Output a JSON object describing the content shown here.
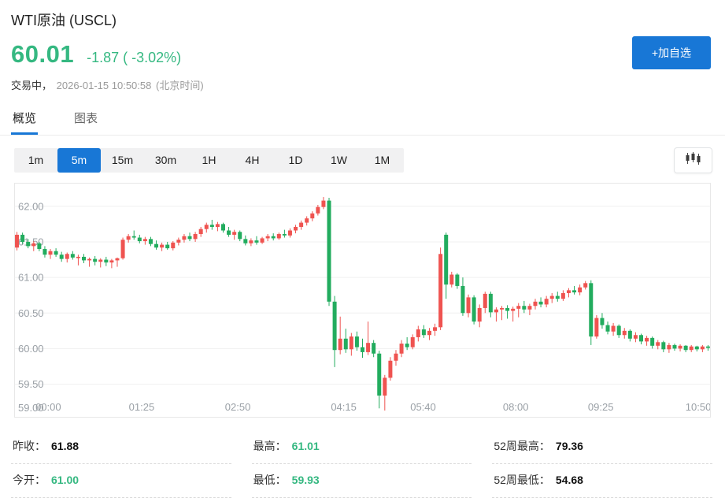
{
  "header": {
    "title": "WTI原油 (USCL)",
    "price": "60.01",
    "change": "-1.87 ( -3.02%)",
    "status_prefix": "交易中，",
    "status_time": "2026-01-15 10:50:58",
    "status_tz": "(北京时间)",
    "add_watchlist_label": "+加自选"
  },
  "tabs": [
    {
      "label": "概览",
      "active": true
    },
    {
      "label": "图表",
      "active": false
    }
  ],
  "intervals": {
    "active": "5m",
    "options": [
      "1m",
      "5m",
      "15m",
      "30m",
      "1H",
      "4H",
      "1D",
      "1W",
      "1M"
    ]
  },
  "stats": [
    {
      "label": "昨收：",
      "value": "61.88"
    },
    {
      "label": "最高：",
      "value": "61.01"
    },
    {
      "label": "52周最高：",
      "value": "79.36"
    },
    {
      "label": "今开：",
      "value": "61.00"
    },
    {
      "label": "最低：",
      "value": "59.93"
    },
    {
      "label": "52周最低：",
      "value": "54.68"
    }
  ],
  "colors": {
    "accent_blue": "#1877d6",
    "text_green": "#35b881",
    "up_red": "#ef5350",
    "down_green": "#22ac5e"
  },
  "chart_data": {
    "type": "candlestick",
    "interval": "5m",
    "up_color": "#ef5350",
    "down_color": "#22ac5e",
    "grid_color": "#f0f0f0",
    "axis_color": "#9aa0a6",
    "border_color": "#e8e8e8",
    "y_ticks": [
      "62.00",
      "61.50",
      "61.00",
      "60.50",
      "60.00",
      "59.50",
      "59.00"
    ],
    "y_range": [
      59.03,
      62.33
    ],
    "x_ticks": [
      {
        "label": "00:00",
        "pos": 0.049
      },
      {
        "label": "01:25",
        "pos": 0.183
      },
      {
        "label": "02:50",
        "pos": 0.321
      },
      {
        "label": "04:15",
        "pos": 0.473
      },
      {
        "label": "05:40",
        "pos": 0.587
      },
      {
        "label": "08:00",
        "pos": 0.72
      },
      {
        "label": "09:25",
        "pos": 0.842
      },
      {
        "label": "10:50",
        "pos": 0.982
      }
    ],
    "candles": [
      [
        61.42,
        61.64,
        61.38,
        61.6
      ],
      [
        61.6,
        61.63,
        61.47,
        61.5
      ],
      [
        61.5,
        61.54,
        61.41,
        61.44
      ],
      [
        61.44,
        61.51,
        61.37,
        61.48
      ],
      [
        61.48,
        61.5,
        61.37,
        61.4
      ],
      [
        61.4,
        61.44,
        61.28,
        61.32
      ],
      [
        61.32,
        61.4,
        61.26,
        61.37
      ],
      [
        61.37,
        61.41,
        61.29,
        61.32
      ],
      [
        61.32,
        61.36,
        61.22,
        61.26
      ],
      [
        61.26,
        61.35,
        61.21,
        61.33
      ],
      [
        61.33,
        61.37,
        61.25,
        61.28
      ],
      [
        61.28,
        61.32,
        61.17,
        61.29
      ],
      [
        61.29,
        61.33,
        61.2,
        61.24
      ],
      [
        61.24,
        61.28,
        61.15,
        61.26
      ],
      [
        61.26,
        61.3,
        61.17,
        61.22
      ],
      [
        61.22,
        61.27,
        61.14,
        61.25
      ],
      [
        61.25,
        61.29,
        61.16,
        61.21
      ],
      [
        61.21,
        61.26,
        61.13,
        61.24
      ],
      [
        61.24,
        61.28,
        61.15,
        61.27
      ],
      [
        61.27,
        61.56,
        61.25,
        61.53
      ],
      [
        61.53,
        61.61,
        61.49,
        61.58
      ],
      [
        61.58,
        61.66,
        61.53,
        61.56
      ],
      [
        61.56,
        61.6,
        61.48,
        61.51
      ],
      [
        61.51,
        61.57,
        61.46,
        61.54
      ],
      [
        61.54,
        61.57,
        61.44,
        61.47
      ],
      [
        61.47,
        61.52,
        61.39,
        61.42
      ],
      [
        61.42,
        61.49,
        61.37,
        61.46
      ],
      [
        61.46,
        61.5,
        61.39,
        61.41
      ],
      [
        61.41,
        61.51,
        61.38,
        61.49
      ],
      [
        61.49,
        61.56,
        61.45,
        61.53
      ],
      [
        61.53,
        61.61,
        61.49,
        61.58
      ],
      [
        61.58,
        61.63,
        61.51,
        61.54
      ],
      [
        61.54,
        61.64,
        61.5,
        61.61
      ],
      [
        61.61,
        61.71,
        61.57,
        61.68
      ],
      [
        61.68,
        61.77,
        61.63,
        61.74
      ],
      [
        61.74,
        61.81,
        61.67,
        61.71
      ],
      [
        61.71,
        61.78,
        61.65,
        61.75
      ],
      [
        61.75,
        61.77,
        61.63,
        61.66
      ],
      [
        61.66,
        61.71,
        61.57,
        61.6
      ],
      [
        61.6,
        61.67,
        61.53,
        61.64
      ],
      [
        61.64,
        61.66,
        61.51,
        61.54
      ],
      [
        61.54,
        61.59,
        61.45,
        61.48
      ],
      [
        61.48,
        61.55,
        61.44,
        61.52
      ],
      [
        61.52,
        61.58,
        61.46,
        61.49
      ],
      [
        61.49,
        61.57,
        61.47,
        61.55
      ],
      [
        61.55,
        61.61,
        61.51,
        61.58
      ],
      [
        61.58,
        61.62,
        61.52,
        61.55
      ],
      [
        61.55,
        61.63,
        61.53,
        61.61
      ],
      [
        61.61,
        61.67,
        61.56,
        61.59
      ],
      [
        61.59,
        61.69,
        61.56,
        61.66
      ],
      [
        61.66,
        61.74,
        61.62,
        61.71
      ],
      [
        61.71,
        61.8,
        61.67,
        61.77
      ],
      [
        61.77,
        61.86,
        61.73,
        61.83
      ],
      [
        61.83,
        61.93,
        61.79,
        61.9
      ],
      [
        61.9,
        62.02,
        61.87,
        61.99
      ],
      [
        61.99,
        62.13,
        61.96,
        62.08
      ],
      [
        62.08,
        62.12,
        60.6,
        60.66
      ],
      [
        60.66,
        60.74,
        59.74,
        59.98
      ],
      [
        59.98,
        60.45,
        59.92,
        60.14
      ],
      [
        60.14,
        60.28,
        59.94,
        59.99
      ],
      [
        59.99,
        60.22,
        59.9,
        60.17
      ],
      [
        60.17,
        60.24,
        59.97,
        60.02
      ],
      [
        60.02,
        60.14,
        59.87,
        59.95
      ],
      [
        59.95,
        60.38,
        59.91,
        60.08
      ],
      [
        60.08,
        60.12,
        59.88,
        59.93
      ],
      [
        59.93,
        59.97,
        59.16,
        59.34
      ],
      [
        59.34,
        59.63,
        59.13,
        59.59
      ],
      [
        59.59,
        59.88,
        59.55,
        59.83
      ],
      [
        59.83,
        59.98,
        59.76,
        59.93
      ],
      [
        59.93,
        60.12,
        59.88,
        60.07
      ],
      [
        60.07,
        60.16,
        59.98,
        60.02
      ],
      [
        60.02,
        60.2,
        59.99,
        60.16
      ],
      [
        60.16,
        60.32,
        60.1,
        60.27
      ],
      [
        60.27,
        60.33,
        60.15,
        60.19
      ],
      [
        60.19,
        60.29,
        60.12,
        60.25
      ],
      [
        60.25,
        60.35,
        60.18,
        60.3
      ],
      [
        60.3,
        61.42,
        60.26,
        61.33
      ],
      [
        61.6,
        61.63,
        60.7,
        60.9
      ],
      [
        60.9,
        61.08,
        60.86,
        61.04
      ],
      [
        61.04,
        61.06,
        60.84,
        60.88
      ],
      [
        60.88,
        61.0,
        60.46,
        60.5
      ],
      [
        60.5,
        60.76,
        60.44,
        60.72
      ],
      [
        60.72,
        60.75,
        60.34,
        60.38
      ],
      [
        60.38,
        60.62,
        60.3,
        60.57
      ],
      [
        60.57,
        60.8,
        60.5,
        60.77
      ],
      [
        60.77,
        60.8,
        60.44,
        60.51
      ],
      [
        60.51,
        60.58,
        60.38,
        60.55
      ],
      [
        60.55,
        60.6,
        60.4,
        60.57
      ],
      [
        60.57,
        60.61,
        60.42,
        60.53
      ],
      [
        60.53,
        60.59,
        60.38,
        60.56
      ],
      [
        60.56,
        60.64,
        60.44,
        60.6
      ],
      [
        60.6,
        60.67,
        60.5,
        60.55
      ],
      [
        60.55,
        60.63,
        60.47,
        60.6
      ],
      [
        60.6,
        60.7,
        60.55,
        60.66
      ],
      [
        60.66,
        60.72,
        60.58,
        60.62
      ],
      [
        60.62,
        60.74,
        60.58,
        60.7
      ],
      [
        60.7,
        60.78,
        60.64,
        60.74
      ],
      [
        60.74,
        60.8,
        60.66,
        60.7
      ],
      [
        60.7,
        60.82,
        60.67,
        60.78
      ],
      [
        60.78,
        60.85,
        60.72,
        60.82
      ],
      [
        60.82,
        60.88,
        60.76,
        60.79
      ],
      [
        60.79,
        60.9,
        60.75,
        60.86
      ],
      [
        60.86,
        60.95,
        60.83,
        60.92
      ],
      [
        60.92,
        60.96,
        60.05,
        60.17
      ],
      [
        60.17,
        60.47,
        60.14,
        60.43
      ],
      [
        60.43,
        60.5,
        60.28,
        60.33
      ],
      [
        60.33,
        60.38,
        60.2,
        60.24
      ],
      [
        60.24,
        60.36,
        60.18,
        60.32
      ],
      [
        60.32,
        60.34,
        60.15,
        60.19
      ],
      [
        60.19,
        60.29,
        60.14,
        60.25
      ],
      [
        60.25,
        60.27,
        60.1,
        60.14
      ],
      [
        60.14,
        60.23,
        60.09,
        60.19
      ],
      [
        60.19,
        60.21,
        60.06,
        60.1
      ],
      [
        60.1,
        60.18,
        60.04,
        60.15
      ],
      [
        60.15,
        60.17,
        60.0,
        60.04
      ],
      [
        60.04,
        60.12,
        59.99,
        60.09
      ],
      [
        60.09,
        60.11,
        59.95,
        59.99
      ],
      [
        59.99,
        60.08,
        59.94,
        60.05
      ],
      [
        60.05,
        60.07,
        59.97,
        60.0
      ],
      [
        60.0,
        60.06,
        59.96,
        60.04
      ],
      [
        60.04,
        60.05,
        59.95,
        59.98
      ],
      [
        59.98,
        60.05,
        59.95,
        60.03
      ],
      [
        60.03,
        60.04,
        59.96,
        59.99
      ],
      [
        59.99,
        60.05,
        59.95,
        60.03
      ],
      [
        60.03,
        60.05,
        59.97,
        60.01
      ]
    ]
  }
}
